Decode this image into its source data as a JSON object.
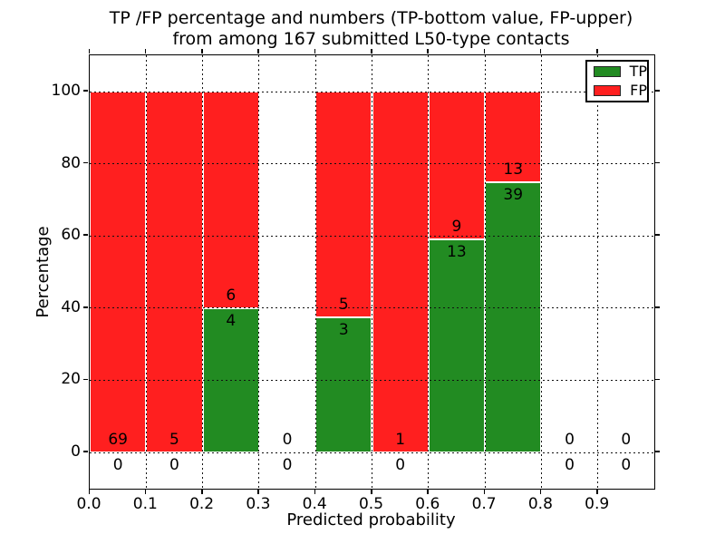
{
  "chart_data": {
    "type": "bar",
    "stacked": true,
    "title_line1": "TP /FP percentage and numbers (TP-bottom value, FP-upper)",
    "title_line2": "from among 167 submitted L50-type contacts",
    "xlabel": "Predicted probability",
    "ylabel": "Percentage",
    "total_contacts": 167,
    "x_tick_labels": [
      "0.0",
      "0.1",
      "0.2",
      "0.3",
      "0.4",
      "0.5",
      "0.6",
      "0.7",
      "0.8",
      "0.9"
    ],
    "y_tick_values": [
      0,
      20,
      40,
      60,
      80,
      100
    ],
    "xlim": [
      0.0,
      1.0
    ],
    "ylim": [
      -10,
      110
    ],
    "grid": {
      "style": "dotted",
      "color": "#111111",
      "vertical_at": [
        0.1,
        0.2,
        0.3,
        0.4,
        0.5,
        0.6,
        0.7,
        0.8,
        0.9
      ],
      "horizontal_at": [
        0,
        20,
        40,
        60,
        80,
        100
      ]
    },
    "colors": {
      "tp": "#228b22",
      "fp": "#ff1f1f",
      "bar_edge": "#ffffff",
      "text": "#000000",
      "background": "#ffffff"
    },
    "legend": {
      "position": "upper right",
      "entries": [
        {
          "label": "TP",
          "color": "#228b22"
        },
        {
          "label": "FP",
          "color": "#ff1f1f"
        }
      ]
    },
    "bins": [
      {
        "x_start": 0.0,
        "x_end": 0.1,
        "tp_count": 0,
        "fp_count": 69,
        "tp_pct": 0.0,
        "fp_pct": 100.0
      },
      {
        "x_start": 0.1,
        "x_end": 0.2,
        "tp_count": 0,
        "fp_count": 5,
        "tp_pct": 0.0,
        "fp_pct": 100.0
      },
      {
        "x_start": 0.2,
        "x_end": 0.3,
        "tp_count": 4,
        "fp_count": 6,
        "tp_pct": 40.0,
        "fp_pct": 60.0
      },
      {
        "x_start": 0.3,
        "x_end": 0.4,
        "tp_count": 0,
        "fp_count": 0,
        "tp_pct": 0.0,
        "fp_pct": 0.0
      },
      {
        "x_start": 0.4,
        "x_end": 0.5,
        "tp_count": 3,
        "fp_count": 5,
        "tp_pct": 37.5,
        "fp_pct": 62.5
      },
      {
        "x_start": 0.5,
        "x_end": 0.6,
        "tp_count": 0,
        "fp_count": 1,
        "tp_pct": 0.0,
        "fp_pct": 100.0
      },
      {
        "x_start": 0.6,
        "x_end": 0.7,
        "tp_count": 13,
        "fp_count": 9,
        "tp_pct": 59.09,
        "fp_pct": 40.91
      },
      {
        "x_start": 0.7,
        "x_end": 0.8,
        "tp_count": 39,
        "fp_count": 13,
        "tp_pct": 75.0,
        "fp_pct": 25.0
      },
      {
        "x_start": 0.8,
        "x_end": 0.9,
        "tp_count": 0,
        "fp_count": 0,
        "tp_pct": 0.0,
        "fp_pct": 0.0
      },
      {
        "x_start": 0.9,
        "x_end": 1.0,
        "tp_count": 0,
        "fp_count": 0,
        "tp_pct": 0.0,
        "fp_pct": 0.0
      }
    ]
  }
}
